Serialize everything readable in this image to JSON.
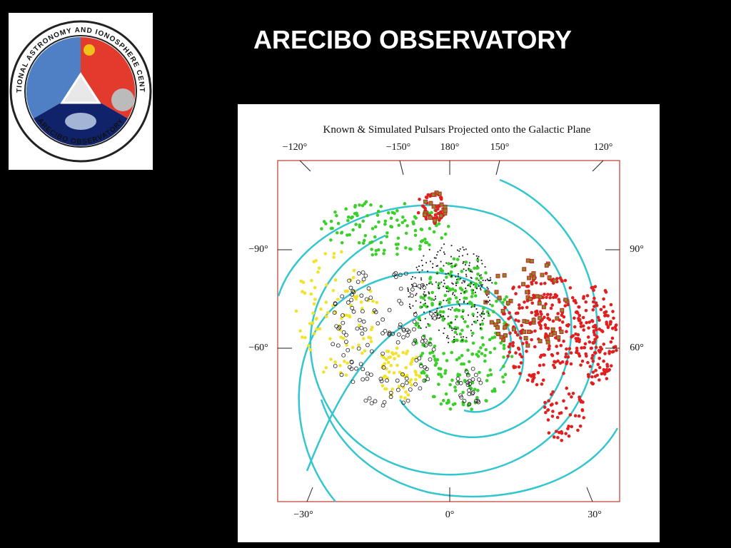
{
  "header": {
    "title": "ARECIBO OBSERVATORY"
  },
  "logo": {
    "ring_top": "NATIONAL ASTRONOMY AND IONOSPHERE CENTER",
    "ring_bottom": "ARECIBO OBSERVATORY"
  },
  "figure": {
    "title": "Known & Simulated Pulsars Projected onto the Galactic Plane",
    "top_labels": [
      "−120°",
      "−150°",
      "180°",
      "150°",
      "120°"
    ],
    "left_labels": [
      "−90°",
      "−60°"
    ],
    "right_labels": [
      "90°",
      "60°"
    ],
    "bottom_labels": [
      "−30°",
      "0°",
      "30°"
    ]
  }
}
